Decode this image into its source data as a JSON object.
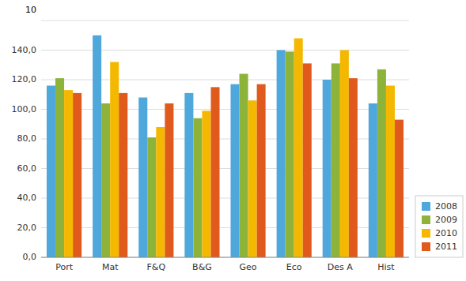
{
  "chart_data": {
    "type": "bar",
    "categories": [
      "Port",
      "Mat",
      "F&Q",
      "B&G",
      "Geo",
      "Eco",
      "Des A",
      "Hist"
    ],
    "series": [
      {
        "name": "2008",
        "color": "#4FA8DC",
        "values": [
          116,
          150,
          108,
          111,
          117,
          140,
          120,
          104
        ]
      },
      {
        "name": "2009",
        "color": "#8DB33A",
        "values": [
          121,
          104,
          81,
          94,
          124,
          139,
          131,
          127
        ]
      },
      {
        "name": "2010",
        "color": "#F5B800",
        "values": [
          113,
          132,
          88,
          99,
          106,
          148,
          140,
          116
        ]
      },
      {
        "name": "2011",
        "color": "#E05A1E",
        "values": [
          111,
          111,
          104,
          115,
          117,
          131,
          121,
          93
        ]
      }
    ],
    "ylim": [
      0,
      160
    ],
    "yticks": [
      {
        "value": 0,
        "label": "0,0"
      },
      {
        "value": 20,
        "label": "20,0"
      },
      {
        "value": 40,
        "label": "40,0"
      },
      {
        "value": 60,
        "label": "60,0"
      },
      {
        "value": 80,
        "label": "80,0"
      },
      {
        "value": 100,
        "label": "100,0"
      },
      {
        "value": 120,
        "label": "120,0"
      },
      {
        "value": 140,
        "label": "140,0"
      },
      {
        "value": 160,
        "label": null
      }
    ],
    "annotations": [
      "10"
    ],
    "grid": true,
    "legend": "lower right"
  }
}
